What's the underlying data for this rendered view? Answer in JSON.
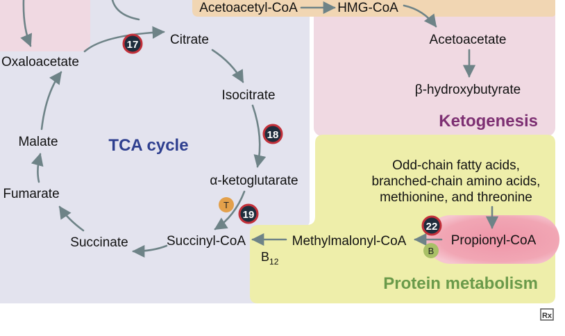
{
  "tca": {
    "title": "TCA cycle",
    "compounds": {
      "oxaloacetate": "Oxaloacetate",
      "citrate": "Citrate",
      "isocitrate": "Isocitrate",
      "alpha_ketoglutarate": "α-ketoglutarate",
      "succinyl_coa": "Succinyl-CoA",
      "succinate": "Succinate",
      "fumarate": "Fumarate",
      "malate": "Malate"
    },
    "steps": {
      "citrate_synthase": "17",
      "isocitrate_step": "18",
      "akg_step": "19"
    },
    "cofactor_t": "T"
  },
  "ketogenesis": {
    "title": "Ketogenesis",
    "compounds": {
      "acetoacetyl_coa": "Acetoacetyl-CoA",
      "hmg_coa": "HMG-CoA",
      "acetoacetate": "Acetoacetate",
      "b_hydroxybutyrate": "β-hydroxybutyrate"
    }
  },
  "protein": {
    "title": "Protein metabolism",
    "sources": [
      "Odd-chain fatty acids,",
      "branched-chain amino acids,",
      "methionine, and threonine"
    ],
    "compounds": {
      "propionyl_coa": "Propionyl-CoA",
      "methylmalonyl_coa": "Methylmalonyl-CoA"
    },
    "steps": {
      "propionyl_step": "22"
    },
    "cofactor_b": "B",
    "b12_base": "B",
    "b12_sub": "12"
  },
  "colors": {
    "tca_bg": "#e3e3ee",
    "keto_bg": "#f0d9e2",
    "protein_bg": "#eeeeaa",
    "top_box": "#f1d6b3",
    "tca_title": "#2e3f8f",
    "keto_title": "#7d2f72",
    "protein_title": "#6a9a4a",
    "arrow": "#6e8387",
    "badge_dark": "#1e2d3c",
    "badge_ring": "#c2303a",
    "highlight": "#f1a3b2",
    "t_badge": "#e3a04a",
    "b_badge": "#a9c067"
  },
  "footer_logo": "Rx"
}
